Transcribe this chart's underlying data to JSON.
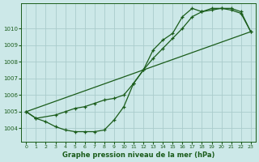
{
  "title": "Graphe pression niveau de la mer (hPa)",
  "bg_color": "#cce8e8",
  "grid_color": "#aacccc",
  "line_color": "#1a5c1a",
  "xlim": [
    -0.5,
    23.5
  ],
  "ylim": [
    1003.2,
    1011.5
  ],
  "yticks": [
    1004,
    1005,
    1006,
    1007,
    1008,
    1009,
    1010
  ],
  "xticks": [
    0,
    1,
    2,
    3,
    4,
    5,
    6,
    7,
    8,
    9,
    10,
    11,
    12,
    13,
    14,
    15,
    16,
    17,
    18,
    19,
    20,
    21,
    22,
    23
  ],
  "line1_x": [
    0,
    1,
    2,
    3,
    4,
    5,
    6,
    7,
    8,
    9,
    10,
    11,
    12,
    13,
    14,
    15,
    16,
    17,
    18,
    19,
    20,
    21,
    22,
    23
  ],
  "line1_y": [
    1005.0,
    1004.6,
    1004.4,
    1004.1,
    1003.9,
    1003.8,
    1003.8,
    1003.8,
    1003.9,
    1004.5,
    1005.3,
    1006.7,
    1007.5,
    1008.7,
    1009.3,
    1009.7,
    1010.7,
    1011.2,
    1011.0,
    1011.2,
    1011.2,
    1011.1,
    1010.9,
    1009.8
  ],
  "line2_x": [
    0,
    1,
    3,
    4,
    5,
    6,
    7,
    8,
    9,
    10,
    11,
    12,
    13,
    14,
    15,
    16,
    17,
    18,
    19,
    20,
    21,
    22,
    23
  ],
  "line2_y": [
    1005.0,
    1004.6,
    1004.8,
    1005.0,
    1005.2,
    1005.3,
    1005.5,
    1005.7,
    1005.8,
    1006.0,
    1006.7,
    1007.5,
    1008.2,
    1008.8,
    1009.4,
    1010.0,
    1010.7,
    1011.0,
    1011.1,
    1011.2,
    1011.2,
    1011.0,
    1009.8
  ],
  "line3_x": [
    0,
    23
  ],
  "line3_y": [
    1005.0,
    1009.8
  ]
}
